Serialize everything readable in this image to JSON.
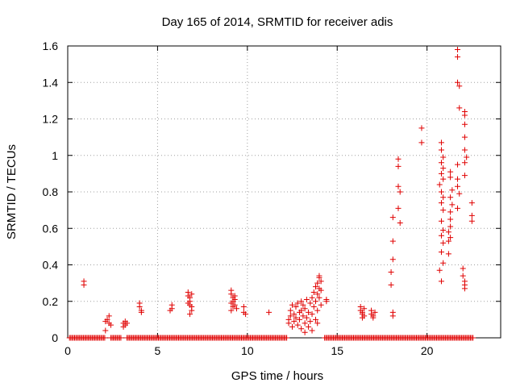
{
  "chart_data": {
    "type": "scatter",
    "title": "Day 165 of 2014, SRMTID for receiver adis",
    "xlabel": "GPS time / hours",
    "ylabel": "SRMTID / TECUs",
    "xlim": [
      0,
      24.1
    ],
    "ylim": [
      0,
      1.6
    ],
    "x_ticks": [
      0,
      5,
      10,
      15,
      20
    ],
    "y_ticks": [
      0,
      0.2,
      0.4,
      0.6,
      0.8,
      1,
      1.2,
      1.4,
      1.6
    ],
    "x_tick_labels": [
      "0",
      "5",
      "10",
      "15",
      "20"
    ],
    "y_tick_labels": [
      "0",
      "0.2",
      "0.4",
      "0.6",
      "0.8",
      "1",
      "1.2",
      "1.4",
      "1.6"
    ],
    "grid": true,
    "marker": "+",
    "color": "#e00000",
    "zero_runs": [
      [
        0.1,
        2.1
      ],
      [
        2.4,
        3.0
      ],
      [
        3.3,
        12.2
      ],
      [
        14.3,
        22.6
      ]
    ],
    "zero_step": 0.07,
    "points": [
      [
        0.9,
        0.31
      ],
      [
        0.9,
        0.29
      ],
      [
        2.1,
        0.09
      ],
      [
        2.1,
        0.04
      ],
      [
        2.2,
        0.1
      ],
      [
        2.3,
        0.12
      ],
      [
        2.3,
        0.08
      ],
      [
        2.4,
        0.07
      ],
      [
        3.1,
        0.06
      ],
      [
        3.1,
        0.08
      ],
      [
        3.2,
        0.09
      ],
      [
        3.2,
        0.07
      ],
      [
        3.3,
        0.08
      ],
      [
        4.0,
        0.19
      ],
      [
        4.0,
        0.17
      ],
      [
        4.1,
        0.15
      ],
      [
        4.1,
        0.14
      ],
      [
        5.8,
        0.18
      ],
      [
        5.8,
        0.16
      ],
      [
        5.7,
        0.15
      ],
      [
        6.7,
        0.25
      ],
      [
        6.7,
        0.23
      ],
      [
        6.8,
        0.22
      ],
      [
        6.8,
        0.2
      ],
      [
        6.7,
        0.19
      ],
      [
        6.8,
        0.18
      ],
      [
        6.9,
        0.17
      ],
      [
        6.9,
        0.15
      ],
      [
        6.8,
        0.13
      ],
      [
        6.9,
        0.24
      ],
      [
        9.1,
        0.26
      ],
      [
        9.1,
        0.24
      ],
      [
        9.2,
        0.22
      ],
      [
        9.3,
        0.21
      ],
      [
        9.2,
        0.2
      ],
      [
        9.1,
        0.19
      ],
      [
        9.3,
        0.18
      ],
      [
        9.2,
        0.17
      ],
      [
        9.4,
        0.16
      ],
      [
        9.1,
        0.15
      ],
      [
        9.3,
        0.23
      ],
      [
        9.8,
        0.17
      ],
      [
        9.8,
        0.14
      ],
      [
        9.9,
        0.13
      ],
      [
        11.2,
        0.14
      ],
      [
        12.3,
        0.1
      ],
      [
        12.3,
        0.08
      ],
      [
        12.4,
        0.12
      ],
      [
        12.4,
        0.15
      ],
      [
        12.5,
        0.18
      ],
      [
        12.5,
        0.06
      ],
      [
        12.6,
        0.13
      ],
      [
        12.6,
        0.09
      ],
      [
        12.7,
        0.17
      ],
      [
        12.7,
        0.11
      ],
      [
        12.8,
        0.19
      ],
      [
        12.8,
        0.07
      ],
      [
        12.9,
        0.14
      ],
      [
        12.9,
        0.1
      ],
      [
        13.0,
        0.2
      ],
      [
        13.0,
        0.15
      ],
      [
        13.0,
        0.05
      ],
      [
        13.1,
        0.12
      ],
      [
        13.1,
        0.18
      ],
      [
        13.2,
        0.08
      ],
      [
        13.2,
        0.16
      ],
      [
        13.3,
        0.21
      ],
      [
        13.3,
        0.11
      ],
      [
        13.4,
        0.14
      ],
      [
        13.4,
        0.06
      ],
      [
        13.5,
        0.19
      ],
      [
        13.5,
        0.09
      ],
      [
        13.6,
        0.22
      ],
      [
        13.6,
        0.13
      ],
      [
        13.7,
        0.25
      ],
      [
        13.7,
        0.17
      ],
      [
        13.8,
        0.28
      ],
      [
        13.8,
        0.1
      ],
      [
        13.8,
        0.2
      ],
      [
        13.9,
        0.3
      ],
      [
        13.9,
        0.24
      ],
      [
        13.9,
        0.15
      ],
      [
        14.0,
        0.27
      ],
      [
        14.0,
        0.22
      ],
      [
        14.0,
        0.34
      ],
      [
        14.0,
        0.33
      ],
      [
        14.1,
        0.31
      ],
      [
        14.1,
        0.26
      ],
      [
        14.1,
        0.18
      ],
      [
        13.9,
        0.08
      ],
      [
        13.6,
        0.04
      ],
      [
        13.2,
        0.03
      ],
      [
        14.4,
        0.21
      ],
      [
        14.4,
        0.2
      ],
      [
        16.3,
        0.17
      ],
      [
        16.3,
        0.15
      ],
      [
        16.4,
        0.14
      ],
      [
        16.4,
        0.13
      ],
      [
        16.5,
        0.16
      ],
      [
        16.5,
        0.12
      ],
      [
        16.4,
        0.11
      ],
      [
        16.9,
        0.15
      ],
      [
        16.9,
        0.13
      ],
      [
        17.0,
        0.12
      ],
      [
        17.0,
        0.11
      ],
      [
        17.1,
        0.14
      ],
      [
        18.1,
        0.66
      ],
      [
        18.1,
        0.53
      ],
      [
        18.1,
        0.43
      ],
      [
        18.0,
        0.36
      ],
      [
        18.0,
        0.29
      ],
      [
        18.1,
        0.14
      ],
      [
        18.1,
        0.12
      ],
      [
        18.4,
        0.98
      ],
      [
        18.4,
        0.94
      ],
      [
        18.4,
        0.83
      ],
      [
        18.5,
        0.8
      ],
      [
        18.4,
        0.71
      ],
      [
        18.5,
        0.63
      ],
      [
        19.7,
        1.15
      ],
      [
        19.7,
        1.07
      ],
      [
        20.8,
        1.07
      ],
      [
        20.8,
        1.03
      ],
      [
        20.8,
        0.96
      ],
      [
        20.9,
        0.93
      ],
      [
        20.8,
        0.9
      ],
      [
        20.9,
        0.87
      ],
      [
        20.7,
        0.84
      ],
      [
        20.8,
        0.8
      ],
      [
        20.9,
        0.77
      ],
      [
        20.8,
        0.74
      ],
      [
        20.9,
        0.7
      ],
      [
        20.8,
        0.64
      ],
      [
        20.9,
        0.59
      ],
      [
        20.8,
        0.56
      ],
      [
        20.9,
        0.52
      ],
      [
        20.8,
        0.47
      ],
      [
        20.9,
        0.41
      ],
      [
        20.7,
        0.37
      ],
      [
        20.8,
        0.31
      ],
      [
        20.9,
        0.99
      ],
      [
        21.3,
        0.91
      ],
      [
        21.3,
        0.88
      ],
      [
        21.4,
        0.81
      ],
      [
        21.3,
        0.77
      ],
      [
        21.4,
        0.73
      ],
      [
        21.3,
        0.69
      ],
      [
        21.3,
        0.65
      ],
      [
        21.3,
        0.61
      ],
      [
        21.2,
        0.58
      ],
      [
        21.3,
        0.55
      ],
      [
        21.2,
        0.46
      ],
      [
        21.2,
        0.53
      ],
      [
        21.7,
        1.58
      ],
      [
        21.7,
        1.54
      ],
      [
        21.7,
        1.4
      ],
      [
        21.8,
        1.38
      ],
      [
        21.8,
        1.26
      ],
      [
        21.7,
        0.95
      ],
      [
        21.7,
        0.87
      ],
      [
        21.7,
        0.83
      ],
      [
        21.8,
        0.79
      ],
      [
        21.7,
        0.71
      ],
      [
        22.1,
        1.24
      ],
      [
        22.1,
        1.22
      ],
      [
        22.1,
        1.17
      ],
      [
        22.1,
        1.1
      ],
      [
        22.1,
        1.03
      ],
      [
        22.2,
        0.99
      ],
      [
        22.1,
        0.96
      ],
      [
        22.1,
        0.89
      ],
      [
        22.0,
        0.38
      ],
      [
        22.0,
        0.34
      ],
      [
        22.1,
        0.31
      ],
      [
        22.1,
        0.29
      ],
      [
        22.1,
        0.27
      ],
      [
        22.5,
        0.74
      ],
      [
        22.5,
        0.67
      ],
      [
        22.5,
        0.64
      ]
    ]
  }
}
